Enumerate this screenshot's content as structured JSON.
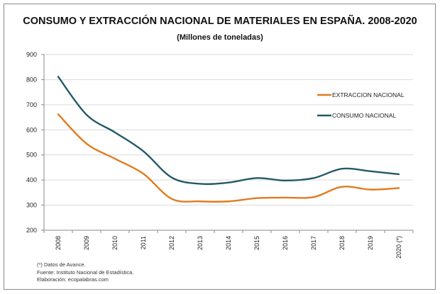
{
  "chart_data": {
    "type": "line",
    "title": "CONSUMO Y EXTRACCIÓN NACIONAL DE MATERIALES EN ESPAÑA. 2008-2020",
    "subtitle": "(Millones de toneladas)",
    "categories": [
      "2008",
      "2009",
      "2010",
      "2011",
      "2012",
      "2013",
      "2014",
      "2015",
      "2016",
      "2017",
      "2018",
      "2019",
      "2020 (*)"
    ],
    "ylim": [
      200,
      900
    ],
    "yticks": [
      200,
      300,
      400,
      500,
      600,
      700,
      800,
      900
    ],
    "grid": true,
    "legend": "right",
    "smooth": true,
    "series": [
      {
        "name": "EXTRACCION NACIONAL",
        "color": "#e07b1f",
        "values": [
          662,
          545,
          485,
          425,
          325,
          315,
          315,
          328,
          330,
          332,
          373,
          362,
          368
        ]
      },
      {
        "name": "CONSUMO NACIONAL",
        "color": "#245a66",
        "values": [
          812,
          660,
          590,
          515,
          410,
          385,
          390,
          408,
          398,
          408,
          445,
          435,
          423
        ]
      }
    ]
  },
  "notes": [
    "(*) Datos de Avance.",
    "Fuente: Instituto Nacional de Estadística.",
    "Elaboración: ecopalabras.com"
  ]
}
